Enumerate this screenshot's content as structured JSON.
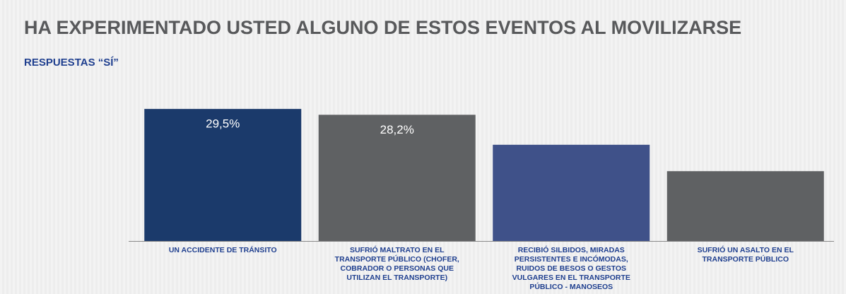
{
  "chart_data": {
    "type": "bar",
    "title": "HA EXPERIMENTADO USTED ALGUNO DE ESTOS EVENTOS AL MOVILIZARSE",
    "subtitle": "RESPUESTAS “SÍ”",
    "categories": [
      "UN ACCIDENTE DE TRÁNSITO",
      "SUFRIÓ MALTRATO EN EL TRANSPORTE PÚBLICO (CHOFER, COBRADOR O PERSONAS QUE UTILIZAN EL TRANSPORTE)",
      "RECIBIÓ SILBIDOS, MIRADAS PERSISTENTES E INCÓMODAS, RUIDOS DE BESOS O GESTOS VULGARES EN EL TRANSPORTE PÚBLICO - MANOSEOS",
      "SUFRIÓ UN ASALTO EN EL TRANSPORTE PÚBLICO"
    ],
    "values": [
      29.5,
      28.2,
      21.5,
      15.6
    ],
    "value_labels": [
      "29,5%",
      "28,2%",
      null,
      null
    ],
    "colors": [
      "#1b3a6b",
      "#5f6163",
      "#3f5189",
      "#5f6163"
    ],
    "ylim": [
      0,
      30
    ]
  }
}
